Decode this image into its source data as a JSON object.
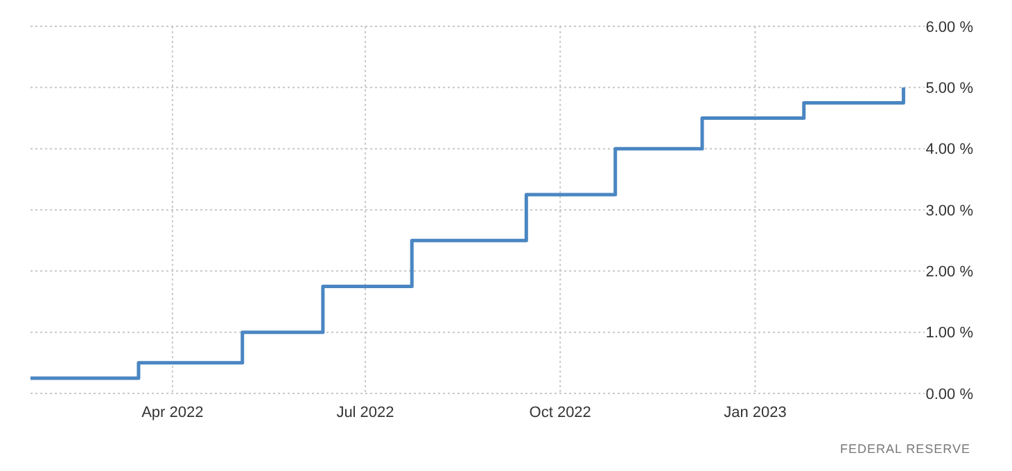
{
  "chart_data": {
    "type": "step",
    "x": [
      "2022-01-24",
      "2022-03-16",
      "2022-05-04",
      "2022-06-11",
      "2022-07-23",
      "2022-09-15",
      "2022-10-27",
      "2022-12-07",
      "2023-01-24",
      "2023-03-12"
    ],
    "series": [
      {
        "color": "#4a86c2",
        "values": [
          0.25,
          0.5,
          1.0,
          1.75,
          2.5,
          3.25,
          4.0,
          4.5,
          4.75,
          5.0
        ]
      }
    ],
    "xlim": [
      "2022-01-24",
      "2023-03-22"
    ],
    "xticks": [
      {
        "value": "2022-04-01",
        "label": "Apr 2022"
      },
      {
        "value": "2022-07-01",
        "label": "Jul 2022"
      },
      {
        "value": "2022-10-01",
        "label": "Oct 2022"
      },
      {
        "value": "2023-01-01",
        "label": "Jan 2023"
      }
    ],
    "ylim": [
      0,
      6
    ],
    "yticks": [
      {
        "value": 0,
        "label": "0.00 %"
      },
      {
        "value": 1,
        "label": "1.00 %"
      },
      {
        "value": 2,
        "label": "2.00 %"
      },
      {
        "value": 3,
        "label": "3.00 %"
      },
      {
        "value": 4,
        "label": "4.00 %"
      },
      {
        "value": 5,
        "label": "5.00 %"
      },
      {
        "value": 6,
        "label": "6.00 %"
      }
    ],
    "grid": true,
    "annotations": [
      "FEDERAL RESERVE"
    ]
  }
}
